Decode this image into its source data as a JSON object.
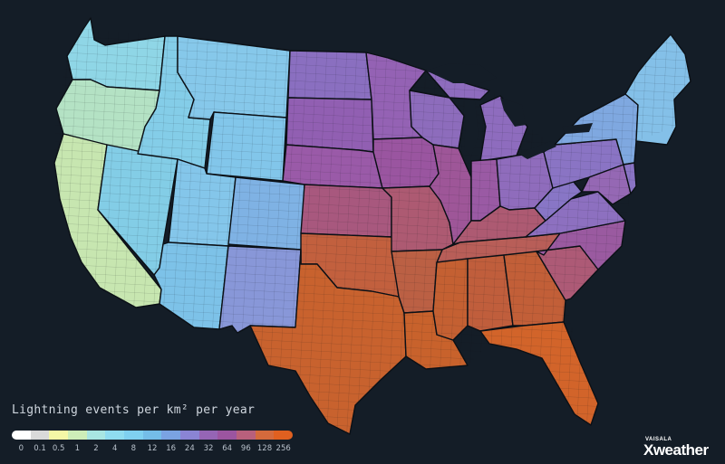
{
  "legend": {
    "title": "Lightning events per km² per year",
    "ticks": [
      "0",
      "0.1",
      "0.5",
      "1",
      "2",
      "4",
      "8",
      "12",
      "16",
      "24",
      "32",
      "64",
      "96",
      "128",
      "256"
    ],
    "colors": [
      "#ffffff",
      "#d9d9d9",
      "#f4f7a6",
      "#cdeeb8",
      "#a8e6e2",
      "#8fdcf0",
      "#7fd0f0",
      "#74bde8",
      "#7aa3e2",
      "#8a84d4",
      "#9565b5",
      "#9b55a0",
      "#b8607c",
      "#d46a3c",
      "#e06020"
    ]
  },
  "brand": {
    "small": "VAISALA",
    "main": "Xweather"
  },
  "colors": {
    "background": "#141d27",
    "borders": "#0b1016"
  }
}
